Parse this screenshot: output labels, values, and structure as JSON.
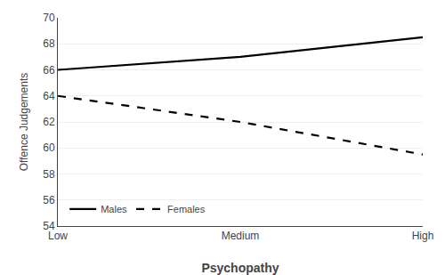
{
  "chart_data": {
    "type": "line",
    "xlabel": "Psychopathy",
    "ylabel": "Offence Judgements",
    "categories": [
      "Low",
      "Medium",
      "High"
    ],
    "series": [
      {
        "name": "Males",
        "color": "#000000",
        "line_style": "solid",
        "values": [
          66.0,
          67.0,
          68.5
        ]
      },
      {
        "name": "Females",
        "color": "#000000",
        "line_style": "dashed",
        "values": [
          64.0,
          62.0,
          59.5
        ]
      }
    ],
    "ylim": [
      54,
      70
    ],
    "yticks": [
      54,
      56,
      58,
      60,
      62,
      64,
      66,
      68,
      70
    ],
    "grid": true,
    "legend": "lower left"
  }
}
